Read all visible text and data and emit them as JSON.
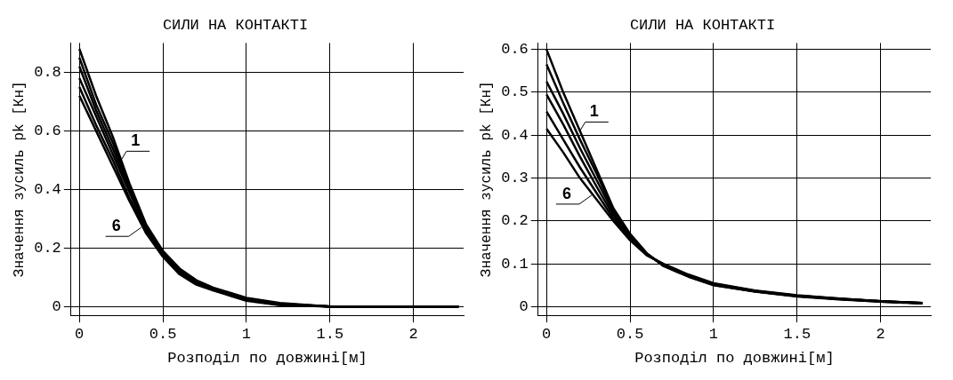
{
  "chart_data": [
    {
      "type": "line",
      "title": "СИЛИ НА КОНТАКТІ",
      "xlabel": "Розподіл по довжині[м]",
      "ylabel": "Значення зусиль pk [Кн]",
      "x": [
        0,
        0.1,
        0.2,
        0.3,
        0.4,
        0.5,
        0.6,
        0.7,
        0.8,
        1.0,
        1.2,
        1.5,
        2.0,
        2.27
      ],
      "series": [
        {
          "color": "#000000",
          "values": [
            0.88,
            0.72,
            0.58,
            0.42,
            0.28,
            0.19,
            0.13,
            0.09,
            0.065,
            0.03,
            0.012,
            0,
            0,
            0
          ]
        },
        {
          "color": "#000000",
          "values": [
            0.85,
            0.69,
            0.56,
            0.41,
            0.275,
            0.185,
            0.125,
            0.087,
            0.063,
            0.028,
            0.01,
            0,
            0,
            0
          ]
        },
        {
          "color": "#000000",
          "values": [
            0.82,
            0.67,
            0.54,
            0.4,
            0.27,
            0.18,
            0.12,
            0.084,
            0.061,
            0.026,
            0.009,
            0,
            0,
            0
          ]
        },
        {
          "color": "#000000",
          "values": [
            0.78,
            0.65,
            0.52,
            0.39,
            0.26,
            0.178,
            0.117,
            0.081,
            0.059,
            0.024,
            0.008,
            0,
            0,
            0
          ]
        },
        {
          "color": "#000000",
          "values": [
            0.75,
            0.62,
            0.5,
            0.37,
            0.255,
            0.174,
            0.114,
            0.078,
            0.057,
            0.022,
            0.006,
            0,
            0,
            0
          ]
        },
        {
          "color": "#000000",
          "values": [
            0.72,
            0.6,
            0.48,
            0.36,
            0.25,
            0.17,
            0.11,
            0.075,
            0.055,
            0.02,
            0.005,
            0,
            0,
            0
          ]
        }
      ],
      "xlim": [
        -0.05,
        2.3
      ],
      "xticks": [
        0,
        0.5,
        1,
        1.5,
        2
      ],
      "ylim": [
        -0.03,
        0.9
      ],
      "yticks": [
        0,
        0.2,
        0.4,
        0.6,
        0.8
      ],
      "grid": true,
      "legend": false,
      "marker": "none",
      "line_style": "solid",
      "annotations": [
        {
          "text": "1",
          "x": 0.25,
          "y": 0.5
        },
        {
          "text": "6",
          "x": 0.37,
          "y": 0.27
        }
      ]
    },
    {
      "type": "line",
      "title": "СИЛИ НА КОНТАКТІ",
      "xlabel": "Розподіл по довжині[м]",
      "ylabel": "Значення зусиль pk [Кн]",
      "x": [
        0,
        0.1,
        0.2,
        0.3,
        0.4,
        0.5,
        0.6,
        0.7,
        0.85,
        1.0,
        1.25,
        1.5,
        1.75,
        2.0,
        2.25
      ],
      "series": [
        {
          "color": "#000000",
          "values": [
            0.6,
            0.5,
            0.41,
            0.32,
            0.23,
            0.17,
            0.125,
            0.095,
            0.07,
            0.05,
            0.035,
            0.024,
            0.017,
            0.012,
            0.008
          ]
        },
        {
          "color": "#000000",
          "values": [
            0.565,
            0.475,
            0.39,
            0.31,
            0.225,
            0.167,
            0.124,
            0.096,
            0.071,
            0.051,
            0.036,
            0.025,
            0.018,
            0.012,
            0.008
          ]
        },
        {
          "color": "#000000",
          "values": [
            0.525,
            0.45,
            0.37,
            0.295,
            0.22,
            0.164,
            0.123,
            0.097,
            0.072,
            0.052,
            0.036,
            0.025,
            0.018,
            0.013,
            0.008
          ]
        },
        {
          "color": "#000000",
          "values": [
            0.495,
            0.425,
            0.35,
            0.28,
            0.213,
            0.161,
            0.122,
            0.098,
            0.073,
            0.053,
            0.037,
            0.026,
            0.018,
            0.013,
            0.009
          ]
        },
        {
          "color": "#000000",
          "values": [
            0.455,
            0.39,
            0.325,
            0.265,
            0.206,
            0.158,
            0.121,
            0.099,
            0.074,
            0.054,
            0.037,
            0.026,
            0.019,
            0.013,
            0.009
          ]
        },
        {
          "color": "#000000",
          "values": [
            0.415,
            0.36,
            0.3,
            0.25,
            0.2,
            0.155,
            0.12,
            0.1,
            0.075,
            0.055,
            0.038,
            0.027,
            0.019,
            0.013,
            0.009
          ]
        }
      ],
      "xlim": [
        -0.05,
        2.3
      ],
      "xticks": [
        0,
        0.5,
        1,
        1.5,
        2
      ],
      "ylim": [
        -0.02,
        0.615
      ],
      "yticks": [
        0,
        0.1,
        0.2,
        0.3,
        0.4,
        0.5,
        0.6
      ],
      "grid": true,
      "legend": false,
      "marker": "none",
      "line_style": "solid",
      "annotations": [
        {
          "text": "1",
          "x": 0.2,
          "y": 0.41
        },
        {
          "text": "6",
          "x": 0.27,
          "y": 0.26
        }
      ]
    }
  ]
}
